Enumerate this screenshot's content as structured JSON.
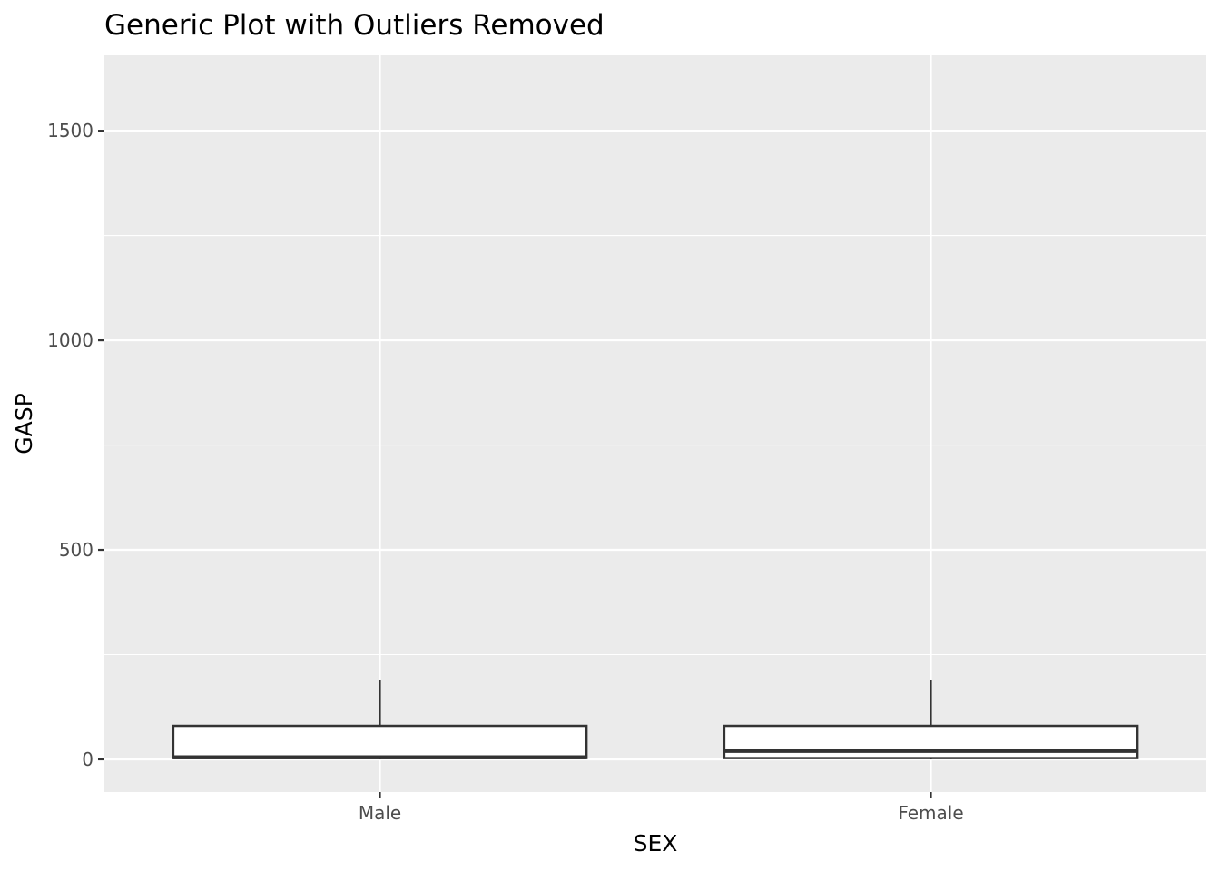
{
  "chart_data": {
    "type": "boxplot",
    "title": "Generic Plot with Outliers Removed",
    "xlabel": "SEX",
    "ylabel": "GASP",
    "categories": [
      "Male",
      "Female"
    ],
    "boxes": [
      {
        "category": "Male",
        "min": 0,
        "q1": 3,
        "median": 5,
        "q3": 80,
        "max": 190
      },
      {
        "category": "Female",
        "min": 0,
        "q1": 3,
        "median": 20,
        "q3": 80,
        "max": 190
      }
    ],
    "ylim": [
      -78,
      1680
    ],
    "yticks": [
      0,
      500,
      1000,
      1500
    ],
    "ytick_labels": [
      "0",
      "500",
      "1000",
      "1500"
    ],
    "grid": true,
    "colors": {
      "panel_background": "#ebebeb",
      "grid": "#ffffff",
      "box_fill": "#ffffff",
      "box_stroke": "#333333",
      "tick_text": "#4d4d4d",
      "tick_mark": "#333333",
      "text": "#000000"
    }
  }
}
